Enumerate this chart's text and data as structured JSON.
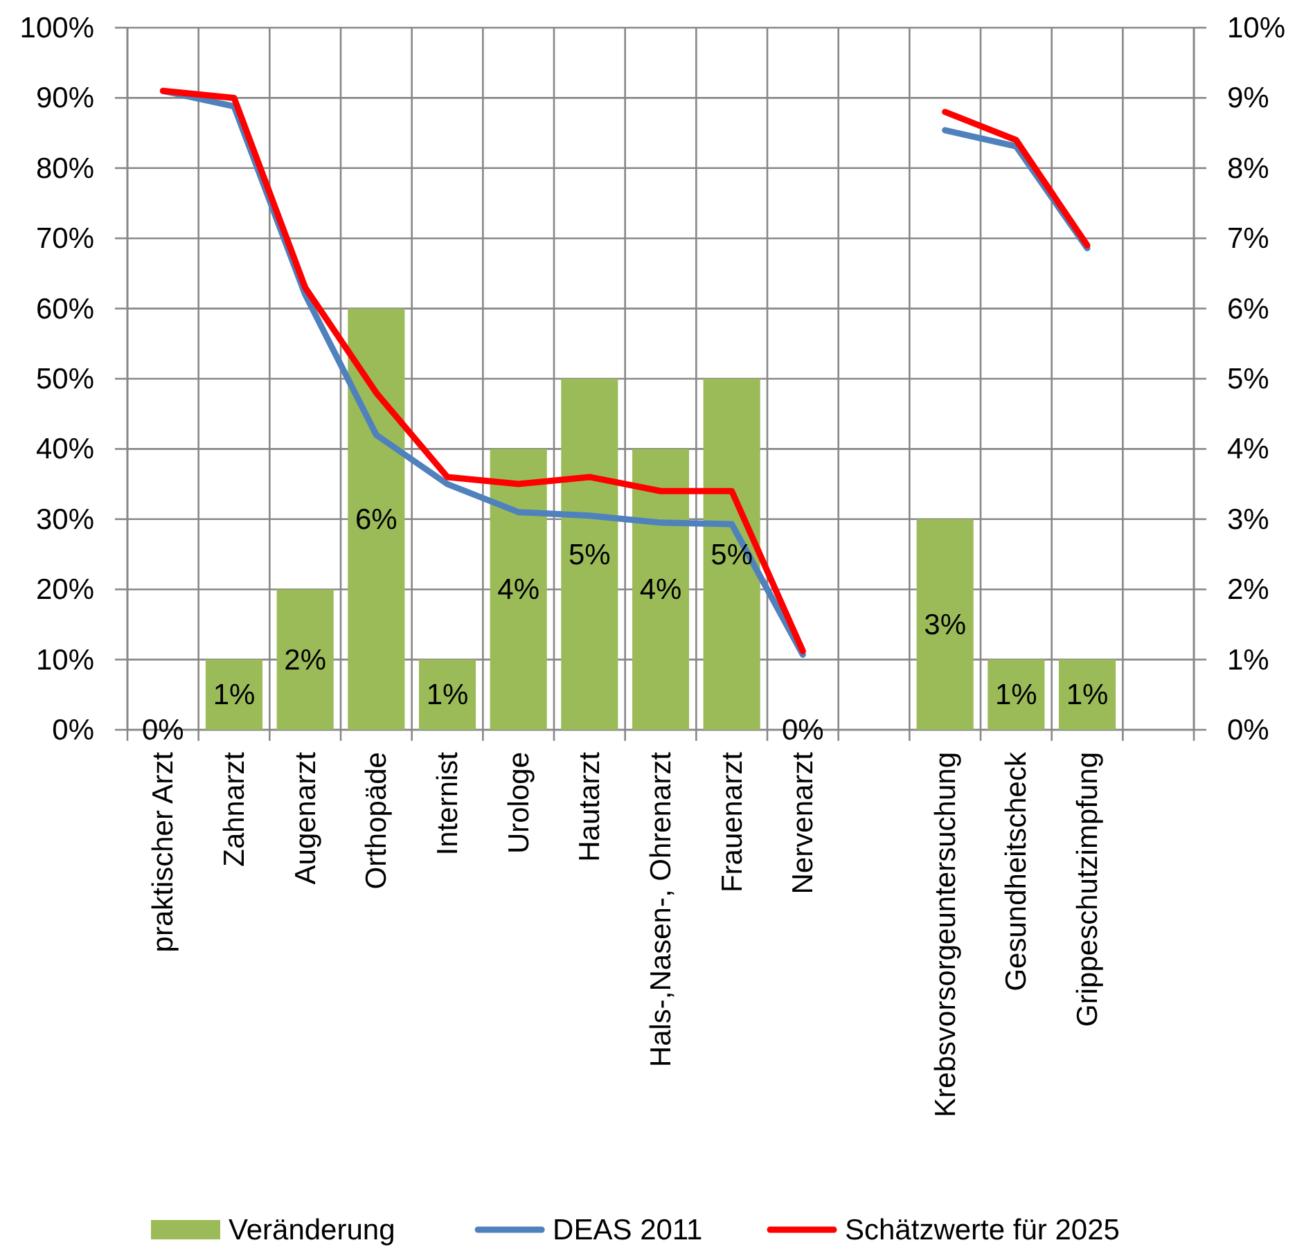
{
  "chart_data": {
    "type": "bar",
    "categories": [
      "praktischer Arzt",
      "Zahnarzt",
      "Augenarzt",
      "Orthopäde",
      "Internist",
      "Urologe",
      "Hautarzt",
      "Hals-,Nasen-, Ohrenarzt",
      "Frauenarzt",
      "Nervenarzt",
      null,
      "Krebsvorsorgeuntersuchung",
      "Gesundheitscheck",
      "Grippeschutzimpfung",
      null
    ],
    "series": [
      {
        "name": "Veränderung",
        "axis": "y2",
        "color": "#9bbb59",
        "values": [
          0,
          1,
          2,
          6,
          1,
          4,
          5,
          4,
          5,
          0,
          null,
          3,
          1,
          1,
          null
        ],
        "value_labels": [
          "0%",
          "1%",
          "2%",
          "6%",
          "1%",
          "4%",
          "5%",
          "4%",
          "5%",
          "0%",
          null,
          "3%",
          "1%",
          "1%",
          null
        ]
      },
      {
        "name": "DEAS 2011",
        "type": "line",
        "color": "#4f81bd",
        "values": [
          91,
          88.8,
          62,
          42,
          35,
          31,
          30.5,
          29.5,
          29.3,
          10.7,
          null,
          85.4,
          83.1,
          68.6,
          null
        ]
      },
      {
        "name": "Schätzwerte für 2025",
        "type": "line",
        "color": "#ff0000",
        "values": [
          91,
          90,
          63,
          48,
          36,
          35,
          36,
          34,
          34,
          11.2,
          null,
          88,
          84,
          69,
          null
        ]
      }
    ],
    "ylim": [
      0,
      100
    ],
    "yticks": [
      {
        "value": 0,
        "label": "0%"
      },
      {
        "value": 10,
        "label": "10%"
      },
      {
        "value": 20,
        "label": "20%"
      },
      {
        "value": 30,
        "label": "30%"
      },
      {
        "value": 40,
        "label": "40%"
      },
      {
        "value": 50,
        "label": "50%"
      },
      {
        "value": 60,
        "label": "60%"
      },
      {
        "value": 70,
        "label": "70%"
      },
      {
        "value": 80,
        "label": "80%"
      },
      {
        "value": 90,
        "label": "90%"
      },
      {
        "value": 100,
        "label": "100%"
      }
    ],
    "y2lim": [
      0,
      10
    ],
    "y2ticks": [
      {
        "value": 0,
        "label": "0%"
      },
      {
        "value": 1,
        "label": "1%"
      },
      {
        "value": 2,
        "label": "2%"
      },
      {
        "value": 3,
        "label": "3%"
      },
      {
        "value": 4,
        "label": "4%"
      },
      {
        "value": 5,
        "label": "5%"
      },
      {
        "value": 6,
        "label": "6%"
      },
      {
        "value": 7,
        "label": "7%"
      },
      {
        "value": 8,
        "label": "8%"
      },
      {
        "value": 9,
        "label": "9%"
      },
      {
        "value": 10,
        "label": "10%"
      }
    ],
    "grid": true,
    "legend": "bottom"
  }
}
